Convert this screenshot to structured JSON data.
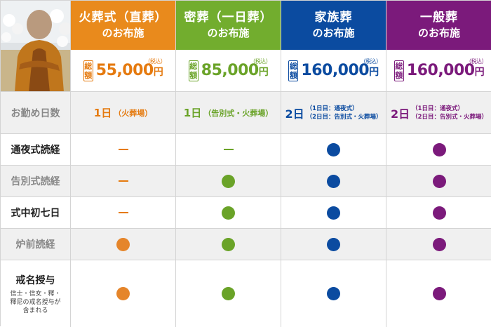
{
  "plans": [
    {
      "title": "火葬式（直葬）",
      "subtitle": "のお布施",
      "price": "55,000",
      "yen": "円",
      "tax": "（税込）",
      "sou": [
        "総",
        "額"
      ],
      "color": "#e57a0f",
      "days_main": "1日",
      "days_sub": "（火葬場）"
    },
    {
      "title": "密葬（一日葬）",
      "subtitle": "のお布施",
      "price": "85,000",
      "yen": "円",
      "tax": "（税込）",
      "sou": [
        "総",
        "額"
      ],
      "color": "#6aa328",
      "days_main": "1日",
      "days_sub": "（告別式・火葬場）"
    },
    {
      "title": "家族葬",
      "subtitle": "のお布施",
      "price": "160,000",
      "yen": "円",
      "tax": "（税込）",
      "sou": [
        "総",
        "額"
      ],
      "color": "#0b4ba0",
      "days_main": "2日",
      "days_lines": [
        "（1日目：通夜式）",
        "（2日目：告別式・火葬場）"
      ]
    },
    {
      "title": "一般葬",
      "subtitle": "のお布施",
      "price": "160,000",
      "yen": "円",
      "tax": "（税込）",
      "sou": [
        "総",
        "額"
      ],
      "color": "#7b1a7b",
      "days_main": "2日",
      "days_lines": [
        "（1日目：通夜式）",
        "（2日目：告別式・火葬場）"
      ]
    }
  ],
  "rows": {
    "days_label": "お勤め日数",
    "tsuya": "通夜式読経",
    "kokubetsu": "告別式読経",
    "shonanoka": "式中初七日",
    "rozen": "炉前読経",
    "kaimyo": "戒名授与",
    "kaimyo_sub": [
      "信士・信女・釋・",
      "釋尼の戒名授与が",
      "含まれる"
    ]
  },
  "colors": {
    "header_orange": "#e98a1c",
    "header_green": "#72ad2e",
    "header_blue": "#0b4ba0",
    "header_purple": "#7b1a7b",
    "dash": "#e57a0f"
  },
  "icons": {
    "photo": "monk-at-altar-photo"
  }
}
